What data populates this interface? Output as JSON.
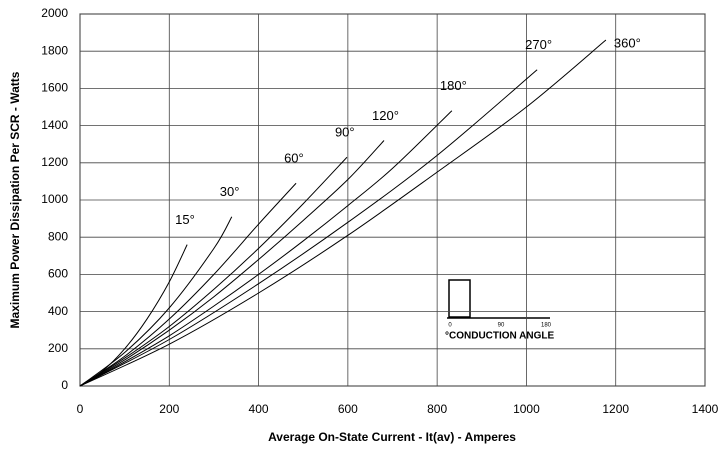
{
  "chart_data": {
    "type": "line",
    "xlabel": "Average On-State Current - It(av) - Amperes",
    "ylabel": "Maximum Power Dissipation Per SCR - Watts",
    "xlim": [
      0,
      1400
    ],
    "xticks": [
      0,
      200,
      400,
      600,
      800,
      1000,
      1200,
      1400
    ],
    "ylim": [
      0,
      2000
    ],
    "yticks": [
      0,
      200,
      400,
      600,
      800,
      1000,
      1200,
      1400,
      1600,
      1800,
      2000
    ],
    "grid": true,
    "series": [
      {
        "name": "15°",
        "color": "#000000",
        "x": [
          0,
          50,
          100,
          150,
          200,
          240
        ],
        "values": [
          0,
          80,
          200,
          360,
          560,
          760
        ]
      },
      {
        "name": "30°",
        "color": "#000000",
        "x": [
          0,
          100,
          200,
          300,
          340
        ],
        "values": [
          0,
          180,
          420,
          740,
          910
        ]
      },
      {
        "name": "60°",
        "color": "#000000",
        "x": [
          0,
          100,
          200,
          300,
          400,
          484
        ],
        "values": [
          0,
          160,
          360,
          600,
          870,
          1090
        ]
      },
      {
        "name": "90°",
        "color": "#000000",
        "x": [
          0,
          100,
          200,
          300,
          400,
          500,
          598
        ],
        "values": [
          0,
          150,
          320,
          520,
          740,
          980,
          1230
        ]
      },
      {
        "name": "120°",
        "color": "#000000",
        "x": [
          0,
          100,
          200,
          300,
          400,
          500,
          600,
          681
        ],
        "values": [
          0,
          140,
          300,
          480,
          680,
          890,
          1110,
          1320
        ]
      },
      {
        "name": "180°",
        "color": "#000000",
        "x": [
          0,
          100,
          200,
          300,
          400,
          500,
          600,
          700,
          833
        ],
        "values": [
          0,
          130,
          270,
          430,
          600,
          780,
          970,
          1170,
          1480
        ]
      },
      {
        "name": "270°",
        "color": "#000000",
        "x": [
          0,
          200,
          400,
          600,
          800,
          1024
        ],
        "values": [
          0,
          250,
          550,
          880,
          1240,
          1700
        ]
      },
      {
        "name": "360°",
        "color": "#000000",
        "x": [
          0,
          200,
          400,
          600,
          800,
          1000,
          1178
        ],
        "values": [
          0,
          225,
          500,
          810,
          1150,
          1500,
          1860
        ]
      }
    ],
    "inset": {
      "ticks": [
        "0",
        "90",
        "180"
      ],
      "label": "°CONDUCTION ANGLE"
    }
  }
}
